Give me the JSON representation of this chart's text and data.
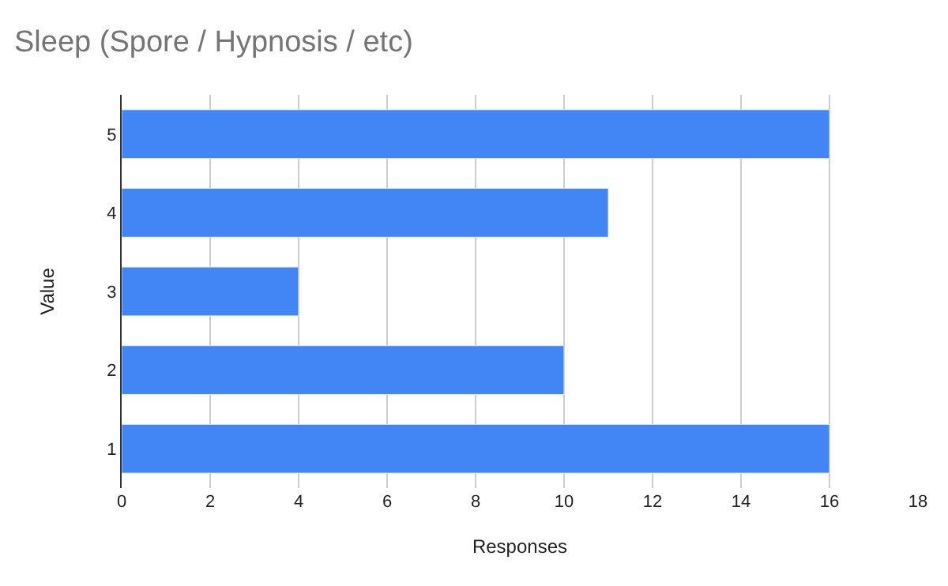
{
  "chart_data": {
    "type": "bar",
    "orientation": "horizontal",
    "title": "Sleep (Spore / Hypnosis / etc)",
    "xlabel": "Responses",
    "ylabel": "Value",
    "categories": [
      "5",
      "4",
      "3",
      "2",
      "1"
    ],
    "values": [
      16,
      11,
      4,
      10,
      16
    ],
    "color": "#4285f4",
    "xlim": [
      0,
      18
    ],
    "xticks": [
      0,
      2,
      4,
      6,
      8,
      10,
      12,
      14,
      16,
      18
    ],
    "grid": "x",
    "legend": false
  }
}
